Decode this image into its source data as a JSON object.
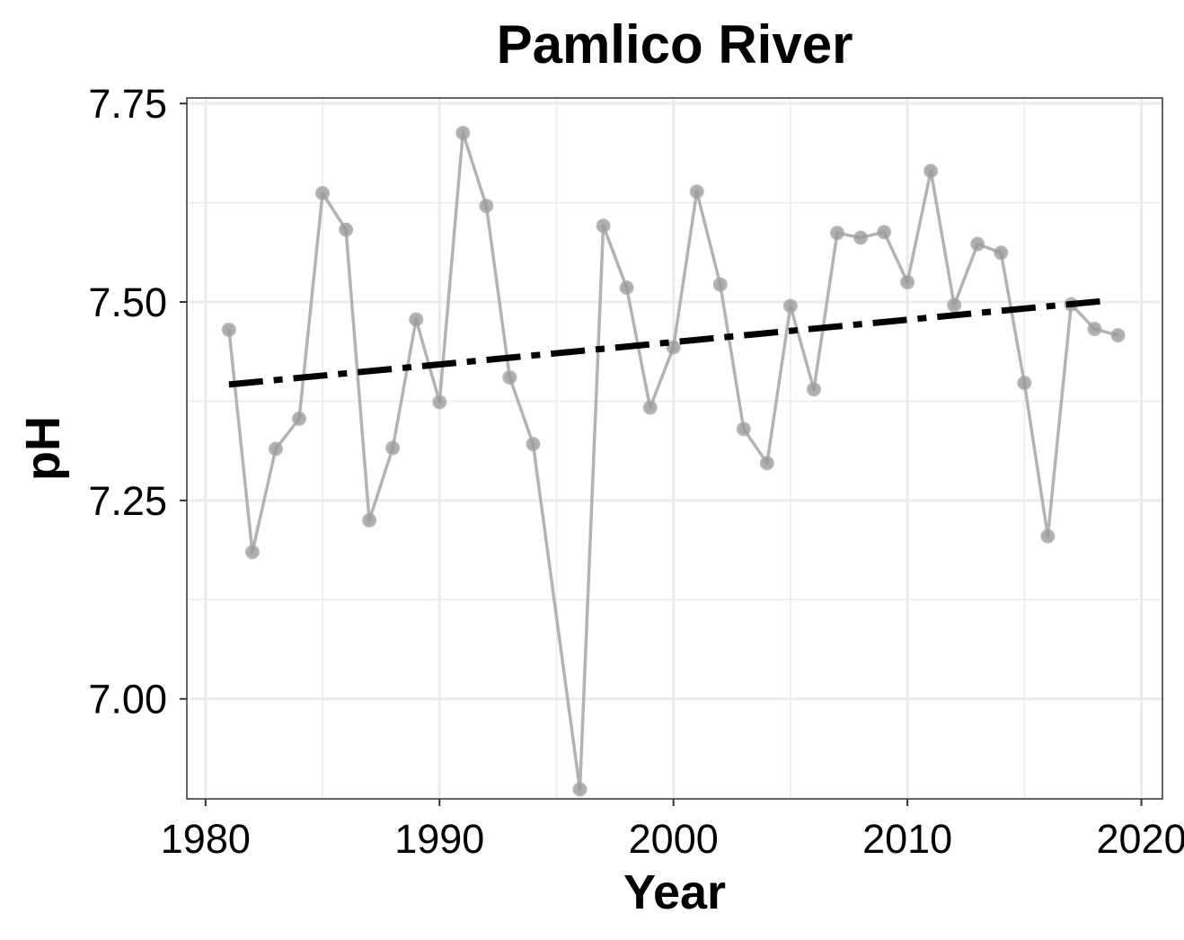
{
  "chart_data": {
    "type": "line",
    "title": "Pamlico River",
    "xlabel": "Year",
    "ylabel": "pH",
    "xlim": [
      1979.2,
      2020.9
    ],
    "ylim": [
      6.874,
      7.757
    ],
    "x_ticks": [
      1980,
      1990,
      2000,
      2010,
      2020
    ],
    "x_tick_labels": [
      "1980",
      "1990",
      "2000",
      "2010",
      "2020"
    ],
    "y_ticks": [
      7.0,
      7.25,
      7.5,
      7.75
    ],
    "y_tick_labels": [
      "7.00",
      "7.25",
      "7.50",
      "7.75"
    ],
    "grid": true,
    "series": [
      {
        "style": "line-with-points",
        "color": "#a6a6a6",
        "x": [
          1981,
          1982,
          1983,
          1984,
          1985,
          1986,
          1987,
          1988,
          1989,
          1990,
          1991,
          1992,
          1993,
          1994,
          1996,
          1997,
          1998,
          1999,
          2000,
          2001,
          2002,
          2003,
          2004,
          2005,
          2006,
          2007,
          2008,
          2009,
          2010,
          2011,
          2012,
          2013,
          2014,
          2015,
          2016,
          2017,
          2018,
          2019
        ],
        "y": [
          7.465,
          7.185,
          7.315,
          7.353,
          7.637,
          7.591,
          7.225,
          7.316,
          7.478,
          7.374,
          7.713,
          7.621,
          7.405,
          7.321,
          6.886,
          7.596,
          7.518,
          7.367,
          7.443,
          7.639,
          7.522,
          7.34,
          7.297,
          7.495,
          7.39,
          7.587,
          7.581,
          7.588,
          7.525,
          7.665,
          7.496,
          7.573,
          7.562,
          7.398,
          7.205,
          7.497,
          7.466,
          7.458
        ]
      },
      {
        "style": "dashdot-trend",
        "color": "#000000",
        "x": [
          1981,
          2018.3
        ],
        "y": [
          7.396,
          7.501
        ]
      }
    ]
  }
}
